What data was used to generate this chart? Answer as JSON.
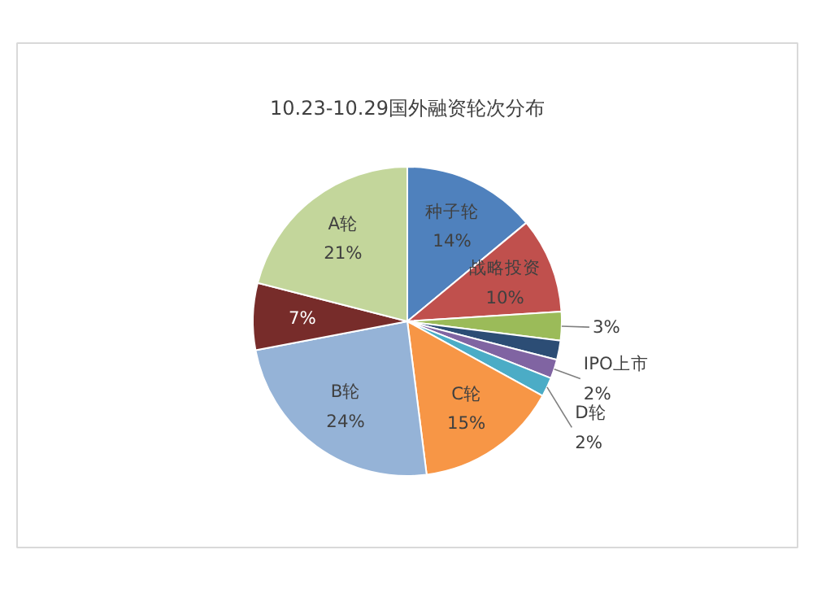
{
  "chart_data": {
    "type": "pie",
    "title": "10.23-10.29国外融资轮次分布",
    "categories": [
      "种子轮",
      "战略投资",
      null,
      null,
      "IPO上市",
      "D轮",
      "C轮",
      "B轮",
      null,
      "A轮"
    ],
    "values": [
      14,
      10,
      3,
      2,
      2,
      2,
      15,
      24,
      7,
      21
    ],
    "colors": [
      "#4f81bd",
      "#c0504d",
      "#9bbb59",
      "#2c4d75",
      "#8064a2",
      "#4bacc6",
      "#f79646",
      "#95b3d7",
      "#772c2a",
      "#c3d69b"
    ],
    "value_labels": [
      "14%",
      "10%",
      "3%",
      null,
      "2%",
      "2%",
      "15%",
      "24%",
      "7%",
      "21%"
    ]
  }
}
